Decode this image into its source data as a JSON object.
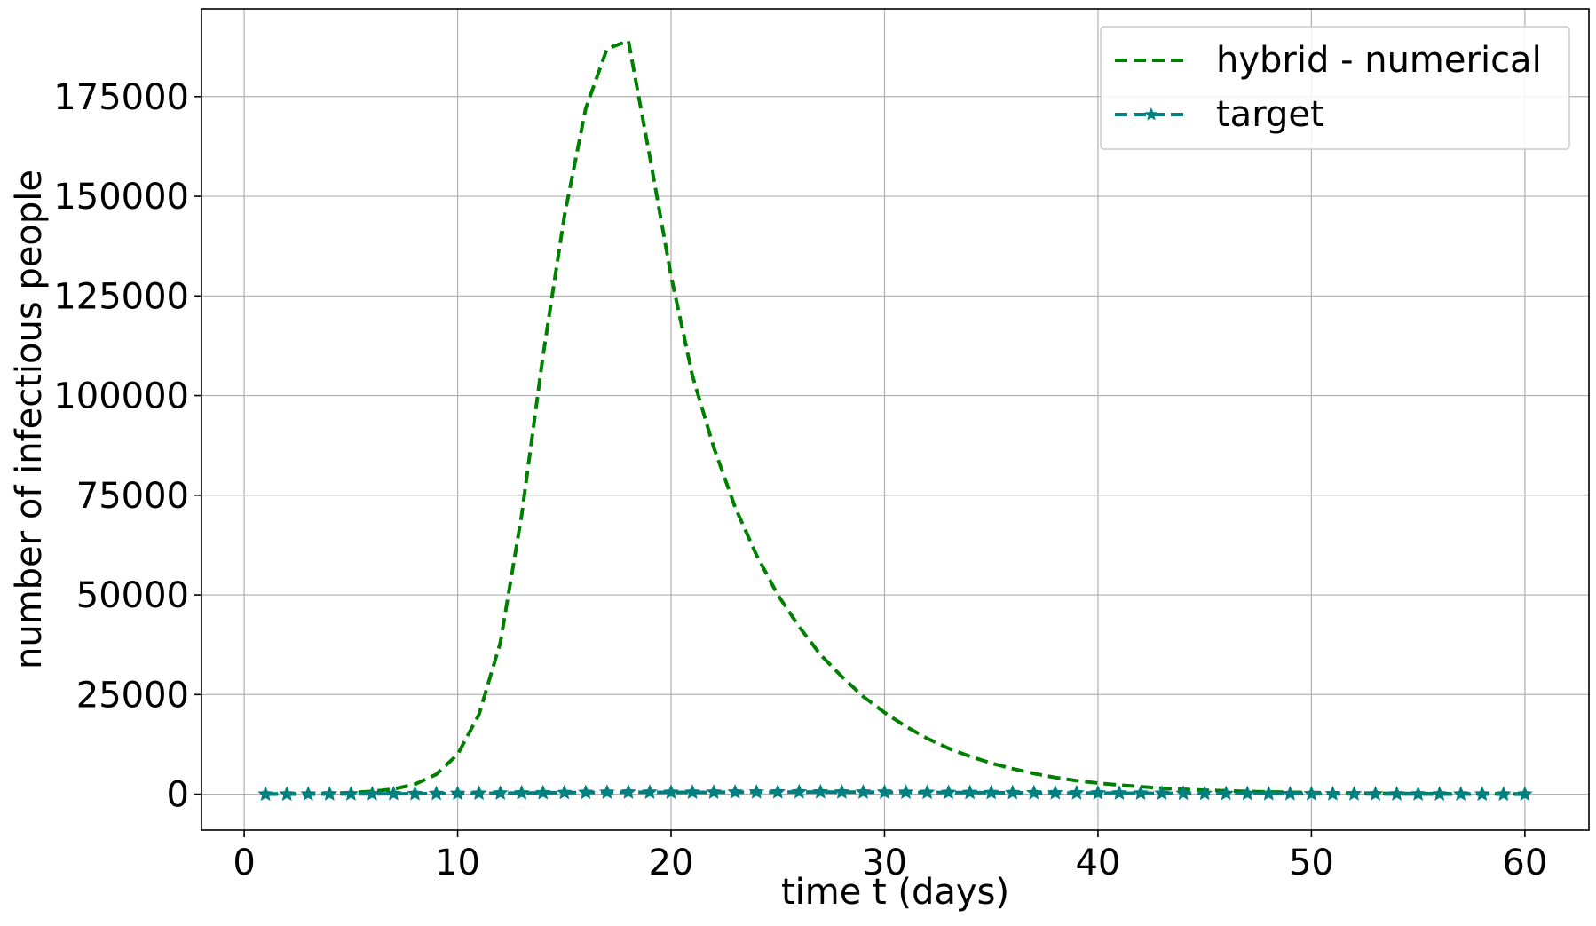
{
  "chart_data": {
    "type": "line",
    "xlabel": "time t (days)",
    "ylabel": "number of infectious people",
    "xlim": [
      -2,
      63
    ],
    "ylim": [
      -9000,
      197000
    ],
    "xticks": [
      0,
      10,
      20,
      30,
      40,
      50,
      60
    ],
    "yticks": [
      0,
      25000,
      50000,
      75000,
      100000,
      125000,
      150000,
      175000
    ],
    "grid": true,
    "legend_position": "top-right",
    "colors": {
      "hybrid": "#008000",
      "target": "#008080",
      "grid": "#b0b0b0"
    },
    "series": [
      {
        "name": "hybrid - numerical",
        "style": "dashed",
        "marker": "none",
        "x": [
          1,
          2,
          3,
          4,
          5,
          6,
          7,
          8,
          9,
          10,
          11,
          12,
          13,
          14,
          15,
          16,
          17,
          18,
          19,
          20,
          21,
          22,
          23,
          24,
          25,
          26,
          27,
          28,
          29,
          30,
          31,
          32,
          33,
          34,
          35,
          36,
          37,
          38,
          39,
          40,
          41,
          42,
          43,
          44,
          45,
          46,
          47,
          48,
          49,
          50,
          51,
          52,
          53,
          54,
          55,
          56,
          57,
          58,
          59,
          60
        ],
        "values": [
          50,
          80,
          130,
          220,
          400,
          700,
          1300,
          2500,
          5000,
          10000,
          20000,
          38000,
          70000,
          110000,
          145000,
          172000,
          187000,
          189000,
          160000,
          130000,
          105000,
          87000,
          72000,
          60000,
          50000,
          42000,
          35000,
          29500,
          24500,
          20500,
          17000,
          14000,
          11500,
          9500,
          7800,
          6400,
          5200,
          4200,
          3400,
          2800,
          2300,
          1900,
          1500,
          1250,
          1000,
          850,
          700,
          580,
          480,
          400,
          330,
          280,
          230,
          190,
          160,
          130,
          110,
          90,
          75,
          60
        ]
      },
      {
        "name": "target",
        "style": "dashed",
        "marker": "star",
        "x": [
          1,
          2,
          3,
          4,
          5,
          6,
          7,
          8,
          9,
          10,
          11,
          12,
          13,
          14,
          15,
          16,
          17,
          18,
          19,
          20,
          21,
          22,
          23,
          24,
          25,
          26,
          27,
          28,
          29,
          30,
          31,
          32,
          33,
          34,
          35,
          36,
          37,
          38,
          39,
          40,
          41,
          42,
          43,
          44,
          45,
          46,
          47,
          48,
          49,
          50,
          51,
          52,
          53,
          54,
          55,
          56,
          57,
          58,
          59,
          60
        ],
        "values": [
          0,
          10,
          20,
          40,
          60,
          80,
          100,
          120,
          150,
          180,
          220,
          260,
          300,
          340,
          380,
          420,
          460,
          500,
          480,
          460,
          470,
          480,
          500,
          520,
          540,
          560,
          540,
          520,
          500,
          480,
          460,
          440,
          420,
          400,
          380,
          360,
          340,
          320,
          300,
          280,
          260,
          240,
          220,
          200,
          180,
          160,
          140,
          120,
          100,
          90,
          80,
          70,
          60,
          50,
          40,
          30,
          20,
          10,
          5,
          0
        ]
      }
    ]
  }
}
